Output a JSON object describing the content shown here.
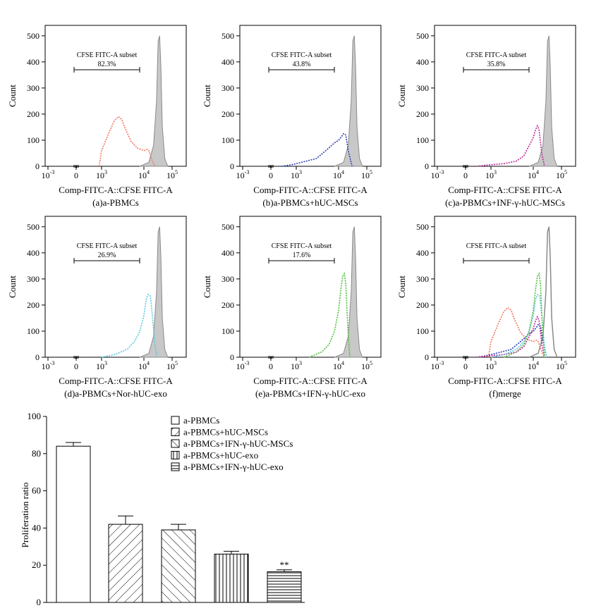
{
  "colors": {
    "control_fill": "#c8c8c8",
    "control_line": "#8a8a8a",
    "a": "#f07860",
    "b": "#2c3fb0",
    "c": "#c02a9a",
    "d": "#5cc6e0",
    "e": "#4fbf3a"
  },
  "chart_data": [
    {
      "type": "histogram",
      "panel": "a",
      "title": "(a)a-PBMCs",
      "xlabel": "Comp-FITC-A::CFSE FITC-A",
      "ylabel": "Count",
      "yticks": [
        0,
        100,
        200,
        300,
        400,
        500
      ],
      "xticks": [
        "10^-3",
        "0",
        "10^3",
        "10^4",
        "10^5"
      ],
      "ylim": [
        0,
        540
      ],
      "gate": {
        "label": "CFSE FITC-A subset",
        "value": "82.3%"
      },
      "series": [
        {
          "name": "control",
          "x": [
            8000,
            15000,
            22000,
            28000,
            32000,
            36000,
            40000,
            45000,
            55000,
            70000
          ],
          "y": [
            0,
            15,
            80,
            250,
            480,
            500,
            380,
            150,
            30,
            0
          ]
        },
        {
          "name": "sample",
          "x": [
            500,
            1000,
            1500,
            2000,
            2500,
            3000,
            3500,
            5000,
            7000,
            10000,
            13000,
            15000,
            20000,
            25000
          ],
          "y": [
            0,
            60,
            130,
            175,
            190,
            180,
            150,
            95,
            70,
            60,
            65,
            60,
            20,
            0
          ]
        }
      ]
    },
    {
      "type": "histogram",
      "panel": "b",
      "title": "(b)a-PBMCs+hUC-MSCs",
      "xlabel": "Comp-FITC-A::CFSE FITC-A",
      "ylabel": "Count",
      "yticks": [
        0,
        100,
        200,
        300,
        400,
        500
      ],
      "xticks": [
        "10^-3",
        "0",
        "10^3",
        "10^4",
        "10^5"
      ],
      "ylim": [
        0,
        540
      ],
      "gate": {
        "label": "CFSE FITC-A subset",
        "value": "43.8%"
      },
      "series": [
        {
          "name": "control",
          "x": [
            8000,
            15000,
            22000,
            28000,
            32000,
            36000,
            40000,
            45000,
            55000,
            70000
          ],
          "y": [
            0,
            15,
            80,
            250,
            480,
            500,
            380,
            150,
            30,
            0
          ]
        },
        {
          "name": "sample",
          "x": [
            20,
            200,
            1000,
            3000,
            5000,
            8000,
            10000,
            13000,
            15000,
            18000,
            22000,
            30000
          ],
          "y": [
            0,
            5,
            10,
            30,
            60,
            90,
            100,
            115,
            125,
            120,
            60,
            0
          ]
        }
      ]
    },
    {
      "type": "histogram",
      "panel": "c",
      "title": "(c)a-PBMCs+INF-γ-hUC-MSCs",
      "xlabel": "Comp-FITC-A::CFSE FITC-A",
      "ylabel": "Count",
      "yticks": [
        0,
        100,
        200,
        300,
        400,
        500
      ],
      "xticks": [
        "10^-3",
        "0",
        "10^3",
        "10^4",
        "10^5"
      ],
      "ylim": [
        0,
        540
      ],
      "gate": {
        "label": "CFSE FITC-A subset",
        "value": "35.8%"
      },
      "series": [
        {
          "name": "control",
          "x": [
            8000,
            15000,
            22000,
            28000,
            32000,
            36000,
            40000,
            45000,
            55000,
            70000
          ],
          "y": [
            0,
            15,
            80,
            250,
            480,
            500,
            380,
            150,
            30,
            0
          ]
        },
        {
          "name": "sample",
          "x": [
            20,
            500,
            2000,
            4000,
            6000,
            8000,
            10000,
            12000,
            14000,
            16000,
            20000,
            25000
          ],
          "y": [
            0,
            5,
            10,
            20,
            40,
            80,
            110,
            140,
            155,
            140,
            50,
            0
          ]
        }
      ]
    },
    {
      "type": "histogram",
      "panel": "d",
      "title": "(d)a-PBMCs+Nor-hUC-exo",
      "xlabel": "Comp-FITC-A::CFSE FITC-A",
      "ylabel": "Count",
      "yticks": [
        0,
        100,
        200,
        300,
        400,
        500
      ],
      "xticks": [
        "10^-3",
        "0",
        "10^3",
        "10^4",
        "10^5"
      ],
      "ylim": [
        0,
        540
      ],
      "gate": {
        "label": "CFSE FITC-A subset",
        "value": "26.9%"
      },
      "series": [
        {
          "name": "control",
          "x": [
            8000,
            15000,
            22000,
            28000,
            32000,
            36000,
            40000,
            45000,
            55000,
            70000
          ],
          "y": [
            0,
            15,
            80,
            250,
            480,
            500,
            380,
            150,
            30,
            0
          ]
        },
        {
          "name": "sample",
          "x": [
            1000,
            2000,
            4000,
            6000,
            8000,
            10000,
            12000,
            14000,
            17000,
            20000,
            25000,
            30000
          ],
          "y": [
            0,
            10,
            30,
            60,
            100,
            160,
            220,
            240,
            235,
            160,
            40,
            0
          ]
        }
      ]
    },
    {
      "type": "histogram",
      "panel": "e",
      "title": "(e)a-PBMCs+IFN-γ-hUC-exo",
      "xlabel": "Comp-FITC-A::CFSE FITC-A",
      "ylabel": "Count",
      "yticks": [
        0,
        100,
        200,
        300,
        400,
        500
      ],
      "xticks": [
        "10^-3",
        "0",
        "10^3",
        "10^4",
        "10^5"
      ],
      "ylim": [
        0,
        540
      ],
      "gate": {
        "label": "CFSE FITC-A subset",
        "value": "17.6%"
      },
      "series": [
        {
          "name": "control",
          "x": [
            8000,
            15000,
            22000,
            28000,
            32000,
            36000,
            40000,
            45000,
            55000,
            70000
          ],
          "y": [
            0,
            15,
            80,
            250,
            480,
            500,
            380,
            150,
            30,
            0
          ]
        },
        {
          "name": "sample",
          "x": [
            2000,
            4000,
            6000,
            8000,
            10000,
            12000,
            14000,
            16000,
            18000,
            21000,
            25000
          ],
          "y": [
            0,
            20,
            50,
            100,
            180,
            260,
            310,
            320,
            280,
            120,
            0
          ]
        }
      ]
    },
    {
      "type": "histogram",
      "panel": "f",
      "title": "(f)merge",
      "xlabel": "Comp-FITC-A::CFSE FITC-A",
      "ylabel": "Count",
      "yticks": [
        0,
        100,
        200,
        300,
        400,
        500
      ],
      "xticks": [
        "10^-3",
        "0",
        "10^3",
        "10^4",
        "10^5"
      ],
      "ylim": [
        0,
        540
      ],
      "gate": {
        "label": "CFSE FITC-A subset",
        "value": ""
      },
      "merge": true
    },
    {
      "type": "bar",
      "panel": "g",
      "title": "",
      "xlabel": "",
      "ylabel": "Proliferation ratio",
      "ylim": [
        0,
        100
      ],
      "yticks": [
        0,
        20,
        40,
        60,
        80,
        100
      ],
      "categories": [
        "a-PBMCs",
        "a-PBMCs+hUC-MSCs",
        "a-PBMCs+IFN-γ-hUC-MSCs",
        "a-PBMCs+hUC-exo",
        "a-PBMCs+IFN-γ-hUC-exo"
      ],
      "values": [
        84,
        42,
        39,
        26,
        16.5
      ],
      "errors": [
        2,
        4.5,
        3,
        1.5,
        1
      ],
      "patterns": [
        "none",
        "diag-right",
        "diag-left",
        "vertical",
        "horizontal"
      ],
      "annotations": [
        {
          "category_index": 4,
          "text": "**"
        }
      ]
    }
  ]
}
